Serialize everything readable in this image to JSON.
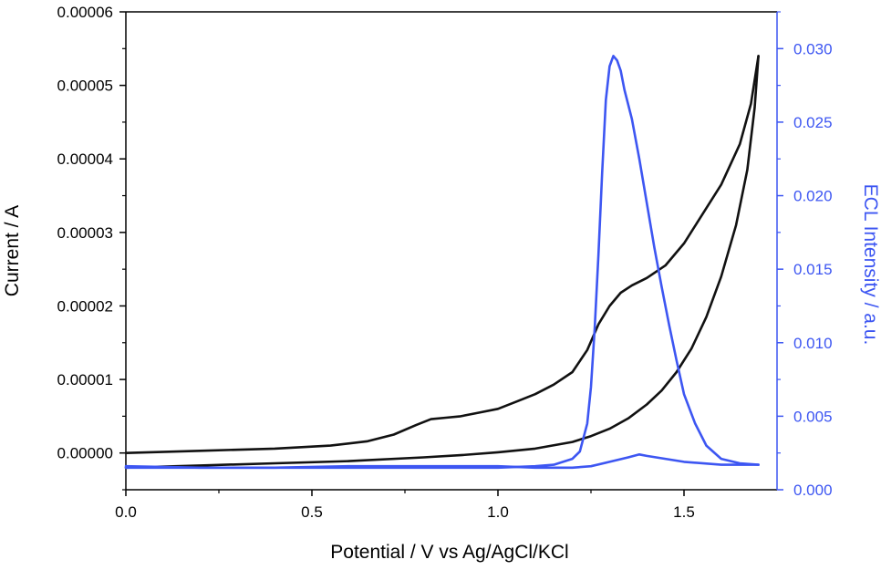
{
  "chart_data": {
    "type": "line",
    "xlabel": "Potential / V vs Ag/AgCl/KCl",
    "ylabel_left": "Current / A",
    "ylabel_right": "ECL Intensity / a.u.",
    "xlim": [
      0.0,
      1.75
    ],
    "ylim_left": [
      -5e-06,
      6e-05
    ],
    "ylim_right": [
      0.0,
      0.0325
    ],
    "x_ticks": [
      "0.0",
      "0.5",
      "1.0",
      "1.5"
    ],
    "x_tick_values": [
      0.0,
      0.5,
      1.0,
      1.5
    ],
    "y_left_ticks": [
      "0.00000",
      "0.00001",
      "0.00002",
      "0.00003",
      "0.00004",
      "0.00005",
      "0.00006"
    ],
    "y_left_tick_values": [
      0.0,
      1e-05,
      2e-05,
      3e-05,
      4e-05,
      5e-05,
      6e-05
    ],
    "y_right_ticks": [
      "0.000",
      "0.005",
      "0.010",
      "0.015",
      "0.020",
      "0.025",
      "0.030"
    ],
    "y_right_tick_values": [
      0.0,
      0.005,
      0.01,
      0.015,
      0.02,
      0.025,
      0.03
    ],
    "grid": false,
    "colors": {
      "current": "#111111",
      "ecl": "#3d56f2",
      "axis_left": "#000000",
      "axis_right": "#3d56f2"
    },
    "series": [
      {
        "axis": "left",
        "x": [
          0.0,
          0.2,
          0.4,
          0.55,
          0.65,
          0.72,
          0.78,
          0.82,
          0.86,
          0.9,
          0.95,
          1.0,
          1.05,
          1.1,
          1.15,
          1.2,
          1.24,
          1.27,
          1.3,
          1.33,
          1.36,
          1.4,
          1.45,
          1.5,
          1.55,
          1.6,
          1.65,
          1.68,
          1.7
        ],
        "values": [
          0.0,
          3e-07,
          6e-07,
          1e-06,
          1.6e-06,
          2.5e-06,
          3.8e-06,
          4.6e-06,
          4.8e-06,
          5e-06,
          5.5e-06,
          6e-06,
          7e-06,
          8e-06,
          9.3e-06,
          1.1e-05,
          1.4e-05,
          1.75e-05,
          2e-05,
          2.18e-05,
          2.28e-05,
          2.38e-05,
          2.55e-05,
          2.85e-05,
          3.25e-05,
          3.65e-05,
          4.2e-05,
          4.75e-05,
          5.4e-05
        ]
      },
      {
        "axis": "left",
        "x": [
          1.7,
          1.69,
          1.67,
          1.64,
          1.6,
          1.56,
          1.52,
          1.48,
          1.44,
          1.4,
          1.35,
          1.3,
          1.25,
          1.2,
          1.1,
          1.0,
          0.9,
          0.8,
          0.6,
          0.4,
          0.2,
          0.0
        ],
        "values": [
          5.4e-05,
          4.7e-05,
          3.85e-05,
          3.1e-05,
          2.4e-05,
          1.85e-05,
          1.42e-05,
          1.1e-05,
          8.5e-06,
          6.6e-06,
          4.7e-06,
          3.3e-06,
          2.3e-06,
          1.5e-06,
          6e-07,
          1e-07,
          -3e-07,
          -6e-07,
          -1.1e-06,
          -1.4e-06,
          -1.7e-06,
          -2e-06
        ]
      },
      {
        "axis": "right",
        "x": [
          0.0,
          0.2,
          0.4,
          0.6,
          0.8,
          1.0,
          1.1,
          1.15,
          1.2,
          1.22,
          1.24,
          1.25,
          1.26,
          1.27,
          1.28,
          1.29,
          1.3,
          1.31,
          1.32,
          1.33,
          1.34,
          1.36,
          1.38,
          1.4,
          1.42,
          1.44,
          1.46,
          1.48,
          1.5,
          1.53,
          1.56,
          1.6,
          1.65,
          1.7
        ],
        "values": [
          0.0015,
          0.0015,
          0.0015,
          0.0015,
          0.0015,
          0.0015,
          0.0016,
          0.0017,
          0.0021,
          0.0026,
          0.0045,
          0.007,
          0.011,
          0.016,
          0.0215,
          0.0265,
          0.0288,
          0.0295,
          0.0292,
          0.0285,
          0.0272,
          0.0252,
          0.0225,
          0.0195,
          0.0165,
          0.0138,
          0.0112,
          0.0088,
          0.0065,
          0.0045,
          0.003,
          0.0021,
          0.0018,
          0.0017
        ]
      },
      {
        "axis": "right",
        "x": [
          1.7,
          1.6,
          1.5,
          1.45,
          1.4,
          1.38,
          1.35,
          1.3,
          1.25,
          1.2,
          1.1,
          1.0,
          0.8,
          0.6,
          0.4,
          0.2,
          0.0
        ],
        "values": [
          0.0017,
          0.0017,
          0.0019,
          0.0021,
          0.0023,
          0.0024,
          0.0022,
          0.0019,
          0.0016,
          0.0015,
          0.0015,
          0.0016,
          0.0016,
          0.0016,
          0.0015,
          0.0015,
          0.0016
        ]
      }
    ]
  }
}
